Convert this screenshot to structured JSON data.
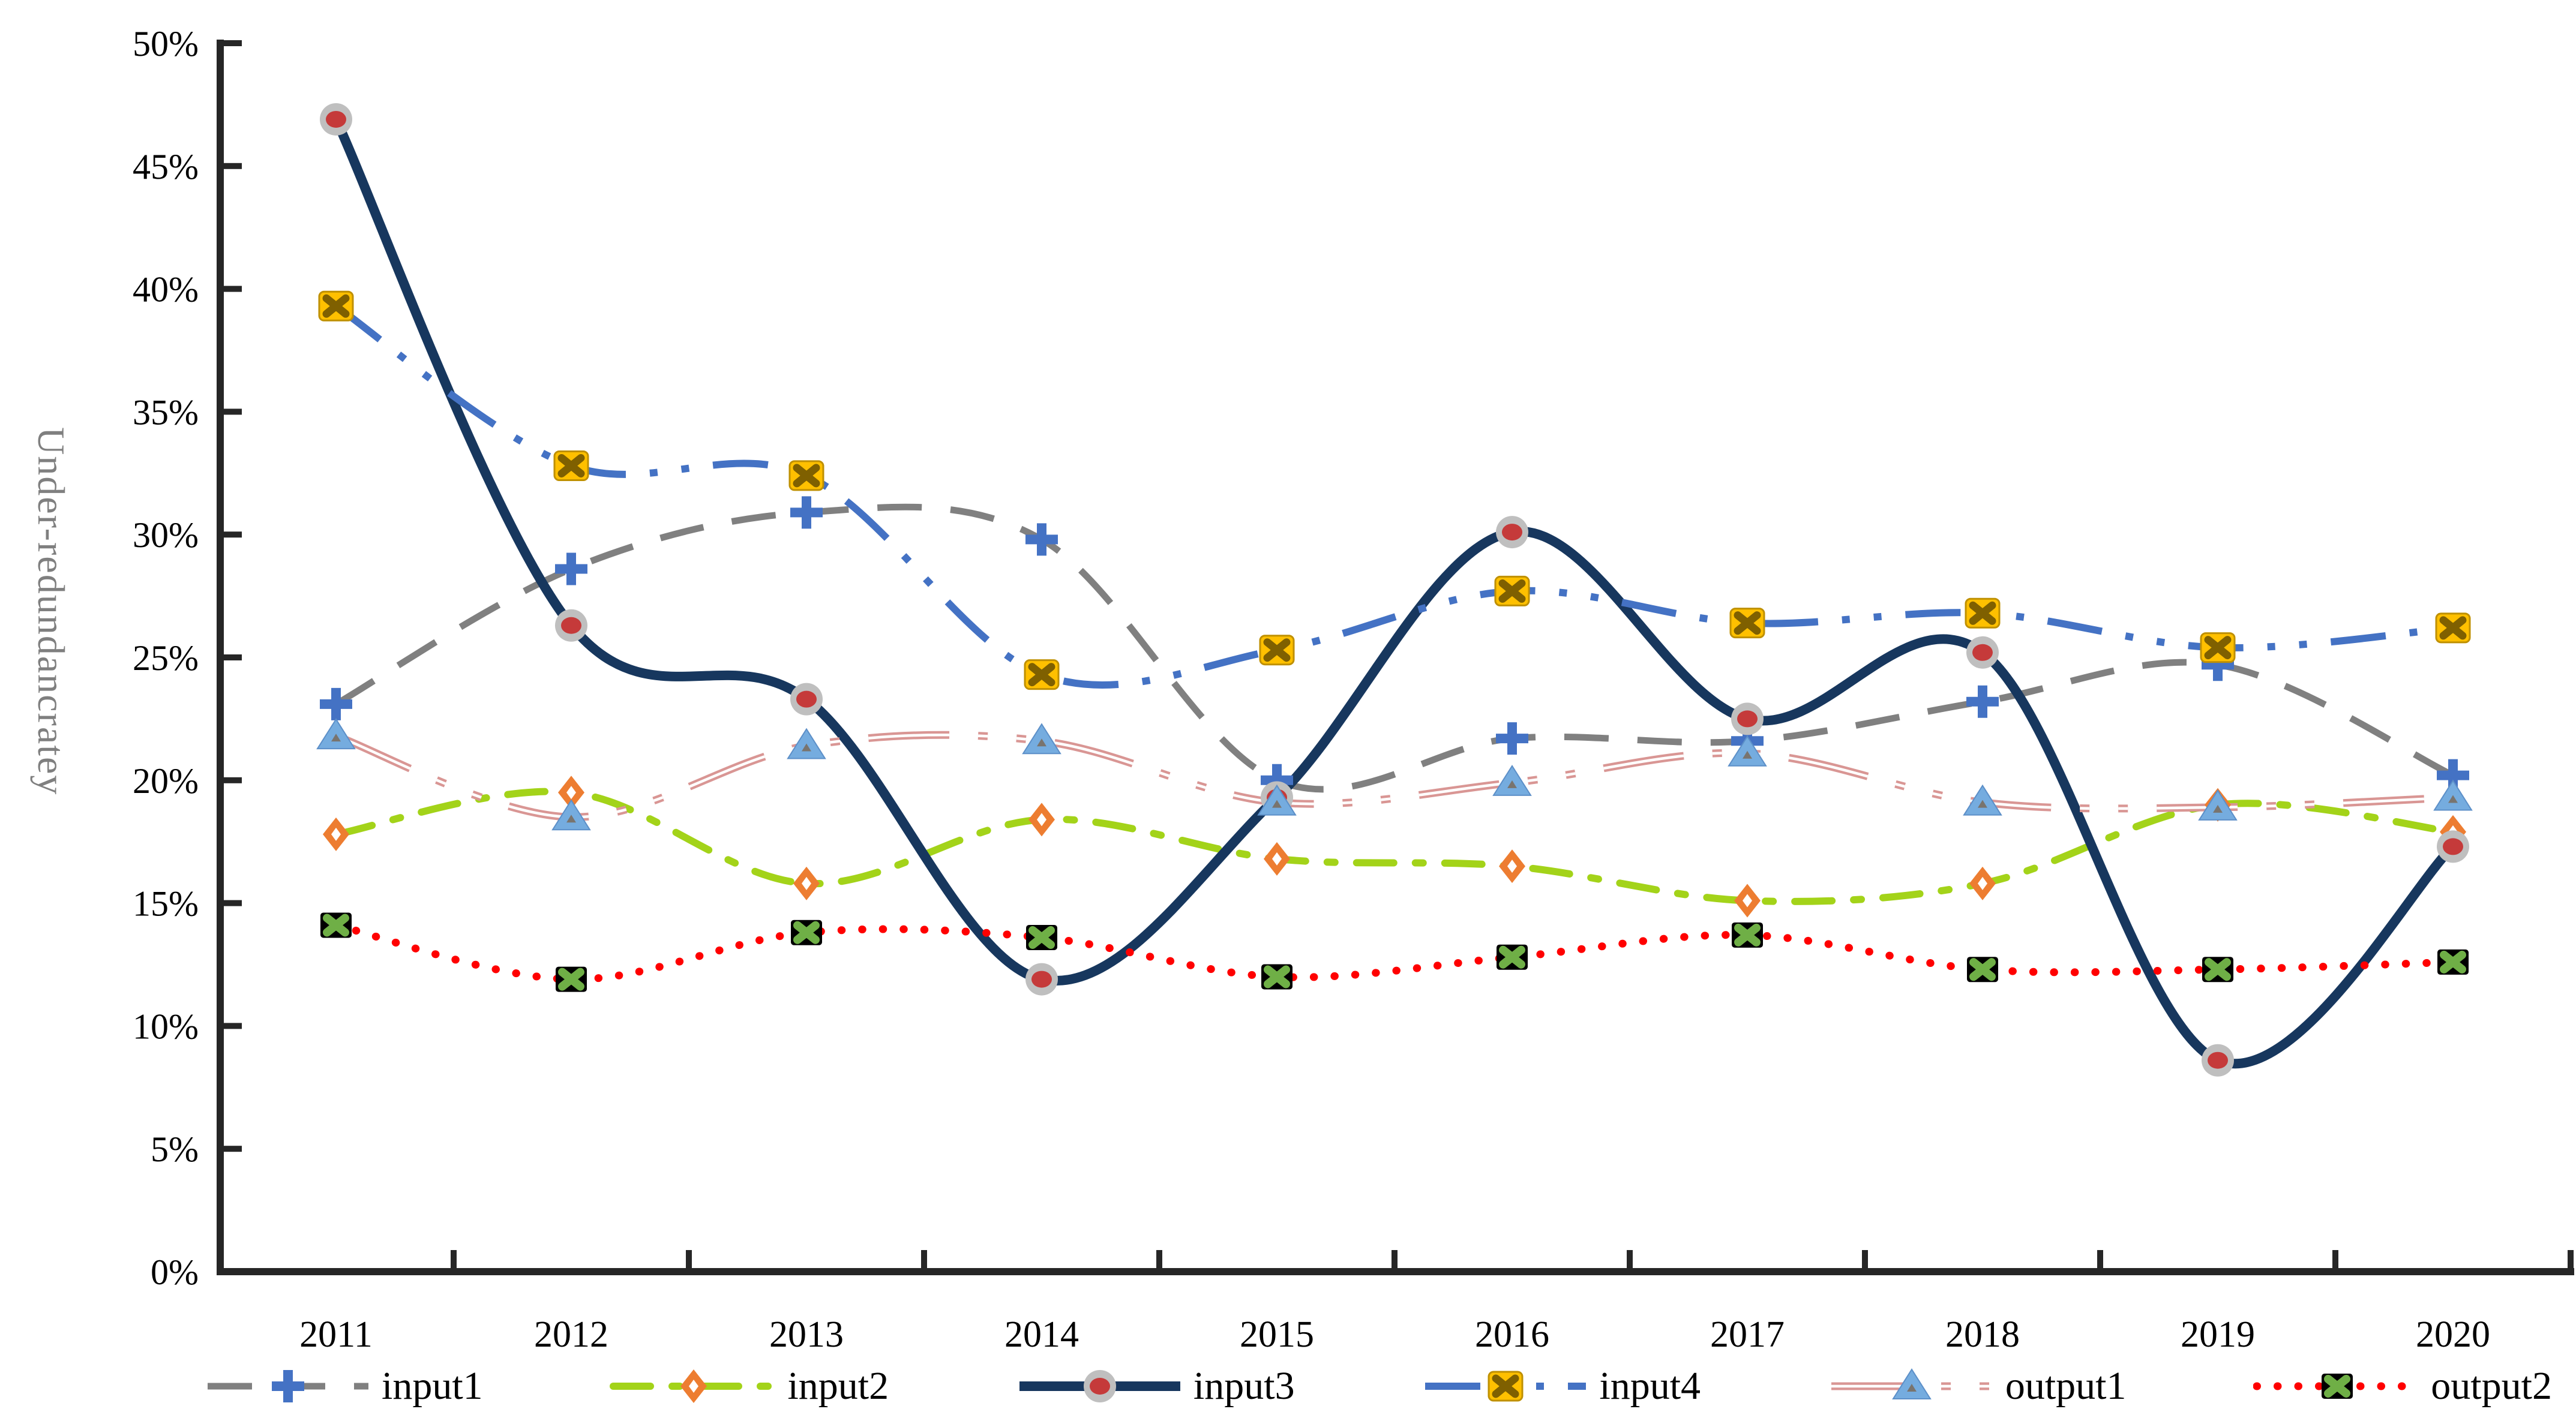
{
  "chart_data": {
    "type": "line",
    "title": "",
    "xlabel": "",
    "ylabel": "Under-redundancratey",
    "ylabel_color": "#7f7f7f",
    "ylim": [
      0,
      50
    ],
    "y_tick_step": 5,
    "y_ticks": [
      "0%",
      "5%",
      "10%",
      "15%",
      "20%",
      "25%",
      "30%",
      "35%",
      "40%",
      "45%",
      "50%"
    ],
    "grid": false,
    "legend_position": "bottom",
    "axis_color": "#262626",
    "categories": [
      "2011",
      "2012",
      "2013",
      "2014",
      "2015",
      "2016",
      "2017",
      "2018",
      "2019",
      "2020"
    ],
    "series": [
      {
        "name": "input1",
        "values": [
          23.1,
          28.6,
          30.9,
          29.8,
          20.0,
          21.7,
          21.6,
          23.2,
          24.7,
          20.2
        ],
        "color": "#808080",
        "line": "dash",
        "marker": "plus",
        "marker_color": "#4472C4"
      },
      {
        "name": "input2",
        "values": [
          17.8,
          19.5,
          15.8,
          18.4,
          16.8,
          16.5,
          15.1,
          15.8,
          19.0,
          17.9
        ],
        "color": "#A3D319",
        "line": "dash-dot",
        "marker": "diamond",
        "marker_color": "#ED7D31"
      },
      {
        "name": "input3",
        "values": [
          46.9,
          26.3,
          23.3,
          11.9,
          19.3,
          30.1,
          22.5,
          25.2,
          8.6,
          17.3
        ],
        "color": "#17375E",
        "line": "solid",
        "marker": "circle",
        "marker_color": "#C53A3A",
        "marker_ring": "#BFBFBF"
      },
      {
        "name": "input4",
        "values": [
          39.3,
          32.8,
          32.4,
          24.3,
          25.3,
          27.7,
          26.4,
          26.8,
          25.4,
          26.2
        ],
        "color": "#4472C4",
        "line": "long-dash-dot-dot",
        "marker": "x-square",
        "marker_color": "#FFC000",
        "marker_x": "#7F6000"
      },
      {
        "name": "output1",
        "values": [
          21.8,
          18.5,
          21.4,
          21.6,
          19.1,
          19.9,
          21.1,
          19.1,
          18.9,
          19.3
        ],
        "color": "#D99694",
        "line": "double-dash-dot-dot",
        "marker": "triangle",
        "marker_color": "#75ACDF"
      },
      {
        "name": "output2",
        "values": [
          14.1,
          11.9,
          13.8,
          13.6,
          12.0,
          12.8,
          13.7,
          12.3,
          12.3,
          12.6
        ],
        "color": "#FF0000",
        "line": "dot",
        "marker": "x-square-dark",
        "marker_color": "#000000",
        "marker_x": "#6FAF46"
      }
    ]
  }
}
